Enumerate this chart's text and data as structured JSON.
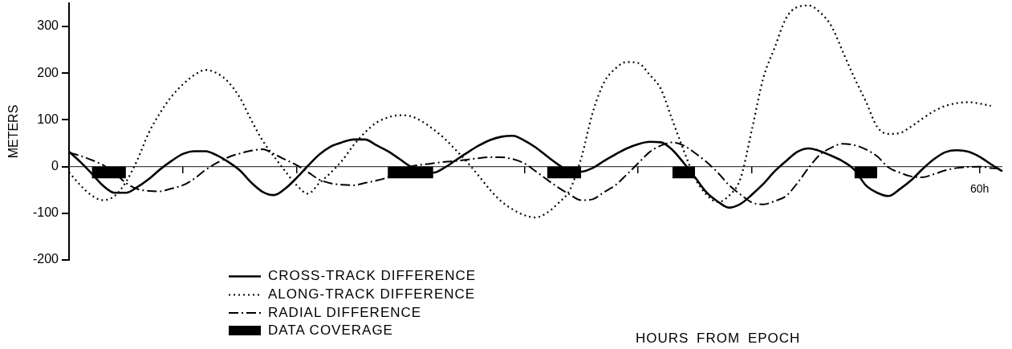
{
  "chart_data": {
    "type": "line",
    "xlabel": "HOURS FROM EPOCH",
    "ylabel": "METERS",
    "categories": [
      null,
      null,
      null,
      null,
      null,
      null,
      null,
      null,
      null,
      null,
      null,
      null,
      null,
      null,
      null,
      null,
      null,
      null,
      null,
      null,
      null,
      null,
      null,
      null,
      null,
      null,
      null,
      null,
      null,
      null,
      null,
      null,
      null,
      null,
      null,
      null,
      null,
      null,
      null,
      null,
      null,
      null,
      null,
      null,
      null,
      null,
      null,
      null,
      null,
      null,
      null,
      null,
      null,
      null,
      null,
      null,
      null,
      null,
      null,
      null,
      null,
      null,
      null,
      null,
      null,
      null,
      null,
      null,
      null,
      null,
      null,
      null,
      null,
      null,
      null,
      null,
      null,
      null,
      null,
      null,
      "60h",
      null,
      null
    ],
    "ylim": [
      -200,
      350
    ],
    "yticks": [
      -200,
      -100,
      0,
      100,
      200,
      300
    ],
    "grid": false,
    "legend": "bottom left",
    "marker": "none",
    "ref_lines": [
      {
        "axis": "y",
        "value": 0,
        "color": "#444444"
      }
    ],
    "series": [
      {
        "name": "CROSS-TRACK DIFFERENCE",
        "type": "line",
        "line_style": "solid",
        "color": "#000000",
        "values": [
          32,
          10,
          -15,
          -41,
          -56,
          -56,
          -44,
          -27,
          -6,
          12,
          27,
          33,
          33,
          24,
          10,
          -8,
          -34,
          -54,
          -61,
          -47,
          -24,
          2,
          26,
          43,
          52,
          58,
          58,
          46,
          33,
          17,
          0,
          -12,
          -13,
          -2,
          14,
          30,
          45,
          57,
          64,
          66,
          56,
          41,
          22,
          4,
          -10,
          -11,
          -3,
          12,
          26,
          39,
          48,
          53,
          52,
          36,
          8,
          -23,
          -55,
          -75,
          -88,
          -80,
          -60,
          -37,
          -10,
          12,
          32,
          39,
          33,
          23,
          11,
          -7,
          -40,
          -56,
          -63,
          -48,
          -29,
          -5,
          16,
          31,
          35,
          32,
          21,
          5,
          -10
        ]
      },
      {
        "name": "ALONG-TRACK DIFFERENCE",
        "type": "line",
        "line_style": "dotted",
        "color": "#000000",
        "values": [
          -12,
          -40,
          -62,
          -72,
          -63,
          -33,
          14,
          72,
          115,
          150,
          176,
          196,
          207,
          200,
          181,
          148,
          100,
          56,
          22,
          -10,
          -40,
          -58,
          -35,
          -13,
          13,
          46,
          73,
          94,
          105,
          110,
          108,
          97,
          80,
          60,
          35,
          9,
          -20,
          -50,
          -75,
          -92,
          -104,
          -109,
          -99,
          -78,
          -50,
          18,
          115,
          180,
          210,
          224,
          222,
          197,
          166,
          100,
          35,
          -25,
          -60,
          -76,
          -62,
          -25,
          80,
          190,
          255,
          318,
          342,
          345,
          330,
          300,
          245,
          190,
          140,
          85,
          70,
          72,
          86,
          103,
          119,
          130,
          136,
          138,
          135,
          130,
          null
        ]
      },
      {
        "name": "RADIAL DIFFERENCE",
        "type": "line",
        "line_style": "dashed",
        "color": "#000000",
        "values": [
          30,
          23,
          14,
          3,
          -14,
          -35,
          -48,
          -52,
          -53,
          -47,
          -40,
          -26,
          -7,
          8,
          20,
          28,
          34,
          37,
          27,
          15,
          3,
          -12,
          -28,
          -36,
          -39,
          -40,
          -35,
          -30,
          -23,
          -10,
          0,
          4,
          7,
          10,
          12,
          15,
          18,
          20,
          20,
          16,
          7,
          -10,
          -28,
          -45,
          -60,
          -72,
          -70,
          -55,
          -40,
          -17,
          7,
          31,
          45,
          52,
          45,
          29,
          10,
          -13,
          -40,
          -60,
          -77,
          -81,
          -74,
          -63,
          -35,
          -2,
          26,
          41,
          49,
          46,
          37,
          22,
          -2,
          -13,
          -21,
          -23,
          -16,
          -8,
          -3,
          -1,
          0,
          -3,
          -5
        ]
      },
      {
        "name": "DATA COVERAGE",
        "type": "area",
        "color": "#000000",
        "values": [
          null,
          null,
          -25,
          -25,
          -25,
          -25,
          null,
          null,
          null,
          null,
          null,
          null,
          null,
          null,
          null,
          null,
          null,
          null,
          null,
          null,
          null,
          null,
          null,
          null,
          null,
          null,
          null,
          null,
          -25,
          -25,
          -25,
          -25,
          -25,
          null,
          null,
          null,
          null,
          null,
          null,
          null,
          null,
          null,
          -25,
          -25,
          -25,
          -25,
          null,
          null,
          null,
          null,
          null,
          null,
          null,
          -25,
          -25,
          -25,
          null,
          null,
          null,
          null,
          null,
          null,
          null,
          null,
          null,
          null,
          null,
          null,
          null,
          -25,
          -25,
          -25,
          null,
          null,
          null,
          null,
          null,
          null,
          null,
          null,
          null,
          null,
          null
        ]
      }
    ]
  }
}
